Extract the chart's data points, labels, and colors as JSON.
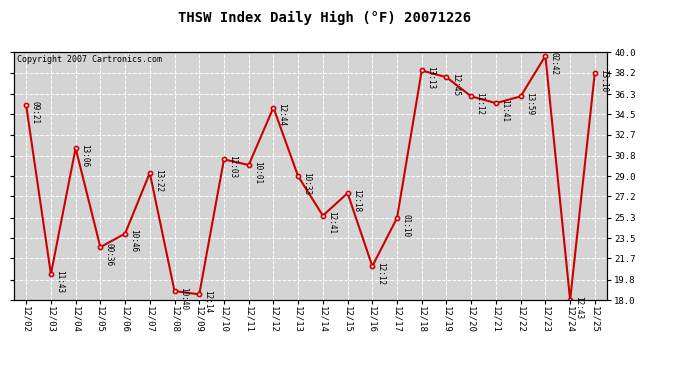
{
  "title": "THSW Index Daily High (°F) 20071226",
  "copyright": "Copyright 2007 Cartronics.com",
  "dates": [
    "12/02",
    "12/03",
    "12/04",
    "12/05",
    "12/06",
    "12/07",
    "12/08",
    "12/09",
    "12/10",
    "12/11",
    "12/12",
    "12/13",
    "12/14",
    "12/15",
    "12/16",
    "12/17",
    "12/18",
    "12/19",
    "12/20",
    "12/21",
    "12/22",
    "12/23",
    "12/24",
    "12/25"
  ],
  "values": [
    35.3,
    20.3,
    31.5,
    22.7,
    23.9,
    29.3,
    18.8,
    18.5,
    30.5,
    30.0,
    35.1,
    29.0,
    25.5,
    27.5,
    21.0,
    25.3,
    38.4,
    37.8,
    36.1,
    35.5,
    36.1,
    39.7,
    18.0,
    38.2
  ],
  "time_labels": [
    "09:21",
    "11:43",
    "13:06",
    "00:36",
    "10:46",
    "13:22",
    "10:40",
    "12:14",
    "12:03",
    "10:01",
    "12:44",
    "10:33",
    "12:41",
    "12:18",
    "12:12",
    "01:10",
    "13:13",
    "12:45",
    "11:12",
    "11:41",
    "13:59",
    "02:42",
    "12:43",
    "13:10"
  ],
  "ylim": [
    18.0,
    40.0
  ],
  "yticks": [
    18.0,
    19.8,
    21.7,
    23.5,
    25.3,
    27.2,
    29.0,
    30.8,
    32.7,
    34.5,
    36.3,
    38.2,
    40.0
  ],
  "line_color": "#cc0000",
  "bg_color": "#ffffff",
  "plot_bg_color": "#d4d4d4",
  "grid_color": "#ffffff",
  "title_fontsize": 10,
  "annot_fontsize": 5.5,
  "tick_fontsize": 6.5,
  "copy_fontsize": 6
}
